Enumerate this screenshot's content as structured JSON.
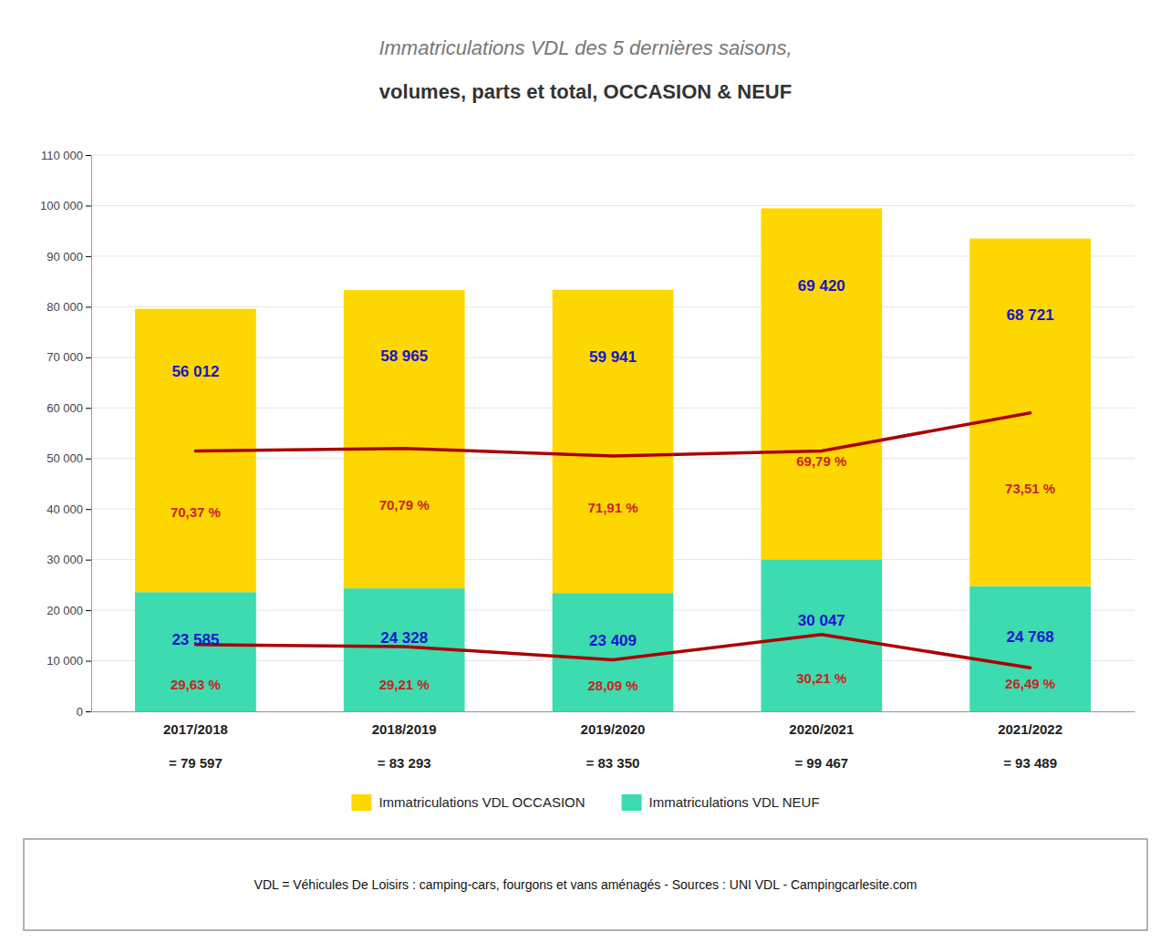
{
  "chart_data": {
    "type": "bar",
    "stacked": true,
    "title": "Immatriculations VDL des 5 dernières saisons,",
    "subtitle": "volumes, parts et total, OCCASION & NEUF",
    "categories": [
      "2017/2018",
      "2018/2019",
      "2019/2020",
      "2020/2021",
      "2021/2022"
    ],
    "series": [
      {
        "name": "Immatriculations VDL NEUF",
        "type": "bar",
        "color": "#3DDBB0",
        "values": [
          23585,
          24328,
          23409,
          30047,
          24768
        ],
        "value_labels": [
          "23 585",
          "24 328",
          "23 409",
          "30 047",
          "24 768"
        ],
        "shares": [
          29.63,
          29.21,
          28.09,
          30.21,
          26.49
        ],
        "share_labels": [
          "29,63 %",
          "29,21 %",
          "28,09 %",
          "30,21 %",
          "26,49 %"
        ]
      },
      {
        "name": "Immatriculations VDL OCCASION",
        "type": "bar",
        "color": "#FFD700",
        "values": [
          56012,
          58965,
          59941,
          69420,
          68721
        ],
        "value_labels": [
          "56 012",
          "58 965",
          "59 941",
          "69 420",
          "68 721"
        ],
        "shares": [
          70.37,
          70.79,
          71.91,
          69.79,
          73.51
        ],
        "share_labels": [
          "70,37 %",
          "70,79 %",
          "71,91 %",
          "69,79 %",
          "73,51 %"
        ]
      },
      {
        "type": "line",
        "color": "#AA0000",
        "values": [
          51500,
          52000,
          50500,
          51500,
          59000
        ]
      },
      {
        "type": "line",
        "color": "#AA0000",
        "values": [
          13200,
          12800,
          10200,
          15200,
          8600
        ]
      }
    ],
    "totals": [
      79597,
      83293,
      83350,
      99467,
      93489
    ],
    "total_labels": [
      "= 79 597",
      "= 83 293",
      "= 83 350",
      "= 99 467",
      "= 93 489"
    ],
    "ylim": [
      0,
      110000
    ],
    "yticks": [
      0,
      {
        "value": 10000,
        "label": "10 000"
      },
      {
        "value": 20000,
        "label": "20 000"
      },
      {
        "value": 30000,
        "label": "30 000"
      },
      {
        "value": 40000,
        "label": "40 000"
      },
      {
        "value": 50000,
        "label": "50 000"
      },
      {
        "value": 60000,
        "label": "60 000"
      },
      {
        "value": 70000,
        "label": "70 000"
      },
      {
        "value": 80000,
        "label": "80 000"
      },
      {
        "value": 90000,
        "label": "90 000"
      },
      {
        "value": 100000,
        "label": "100 000"
      },
      {
        "value": 110000,
        "label": "110 000"
      }
    ],
    "grid": true,
    "data_labels": true,
    "legend": "bottom",
    "annotations": [
      "VDL = Véhicules De Loisirs : camping-cars, fourgons et vans aménagés - Sources : UNI VDL - Campingcarlesite.com"
    ]
  }
}
